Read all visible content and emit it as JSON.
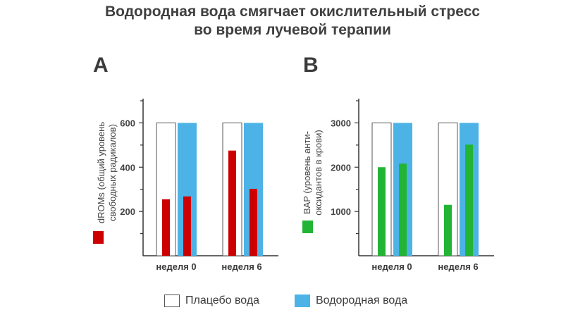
{
  "title_line1": "Водородная вода смягчает окислительный стресс",
  "title_line2": "во время лучевой терапии",
  "colors": {
    "placebo_fill": "#ffffff",
    "hydrogen_fill": "#4db3e6",
    "drom_bar": "#cc0000",
    "bap_bar": "#22b535",
    "axis": "#333333"
  },
  "legend": {
    "placebo_label": "Плацебо вода",
    "hydrogen_label": "Водородная вода"
  },
  "chart_data": [
    {
      "panel": "A",
      "type": "bar",
      "ylabel_line1": "dROMs (общий уровень",
      "ylabel_line2": "свободных радикалов)",
      "ylim": [
        0,
        700
      ],
      "yticks": [
        200,
        400,
        600
      ],
      "categories": [
        "неделя 0",
        "неделя 6"
      ],
      "container_value": 600,
      "series": [
        {
          "name": "Плацебо вода",
          "values": [
            255,
            475
          ]
        },
        {
          "name": "Водородная вода",
          "values": [
            268,
            302
          ]
        }
      ]
    },
    {
      "panel": "B",
      "type": "bar",
      "ylabel_line1": "BAP (уровень анти-",
      "ylabel_line2": "оксидантов в крови)",
      "ylim": [
        0,
        3500
      ],
      "yticks": [
        1000,
        2000,
        3000
      ],
      "categories": [
        "неделя 0",
        "неделя 6"
      ],
      "container_value": 3000,
      "series": [
        {
          "name": "Плацебо вода",
          "values": [
            2000,
            1150
          ]
        },
        {
          "name": "Водородная вода",
          "values": [
            2080,
            2510
          ]
        }
      ]
    }
  ]
}
